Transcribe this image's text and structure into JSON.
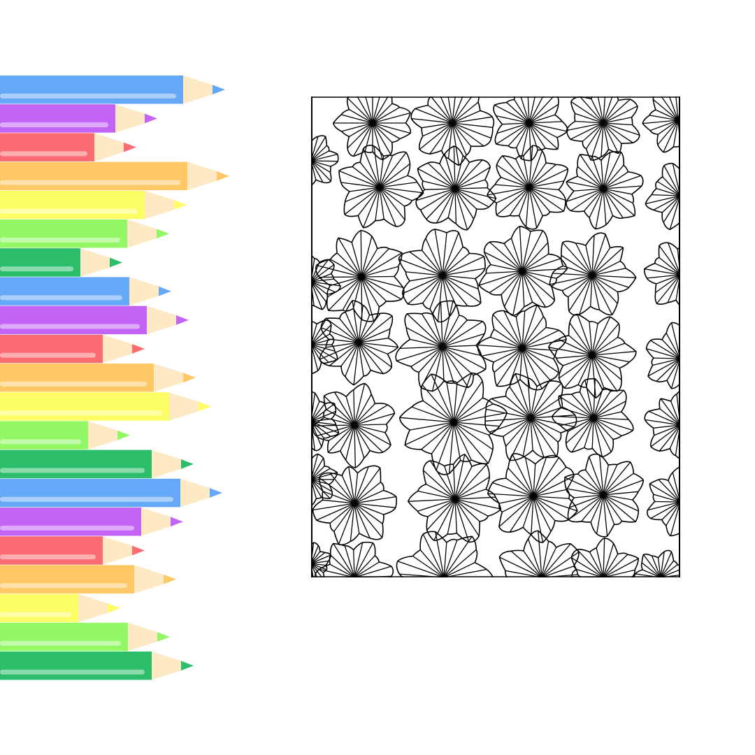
{
  "colors": {
    "background": "#ffffff",
    "wood": "#fde9c4",
    "line_art": "#000000",
    "highlight": "#ffffff"
  },
  "pencils": [
    {
      "color": "#64a8f7",
      "tip": "#64a8f7",
      "name": "blue"
    },
    {
      "color": "#c464f7",
      "tip": "#c464f7",
      "name": "purple"
    },
    {
      "color": "#fb6c72",
      "tip": "#fb6c72",
      "name": "red"
    },
    {
      "color": "#fec866",
      "tip": "#fec866",
      "name": "orange"
    },
    {
      "color": "#fdfd66",
      "tip": "#fdfd66",
      "name": "yellow"
    },
    {
      "color": "#93f865",
      "tip": "#93f865",
      "name": "light-green"
    },
    {
      "color": "#2dbe6c",
      "tip": "#2dbe6c",
      "name": "green"
    },
    {
      "color": "#64a8f7",
      "tip": "#64a8f7",
      "name": "blue"
    },
    {
      "color": "#c464f7",
      "tip": "#c464f7",
      "name": "purple"
    },
    {
      "color": "#fb6c72",
      "tip": "#fb6c72",
      "name": "red"
    },
    {
      "color": "#fec866",
      "tip": "#fec866",
      "name": "orange"
    },
    {
      "color": "#fdfd66",
      "tip": "#fdfd66",
      "name": "yellow"
    },
    {
      "color": "#93f865",
      "tip": "#93f865",
      "name": "light-green"
    },
    {
      "color": "#2dbe6c",
      "tip": "#2dbe6c",
      "name": "green"
    },
    {
      "color": "#64a8f7",
      "tip": "#64a8f7",
      "name": "blue"
    },
    {
      "color": "#c464f7",
      "tip": "#c464f7",
      "name": "purple"
    },
    {
      "color": "#fb6c72",
      "tip": "#fb6c72",
      "name": "red"
    },
    {
      "color": "#fec866",
      "tip": "#fec866",
      "name": "orange"
    },
    {
      "color": "#fdfd66",
      "tip": "#fdfd66",
      "name": "yellow"
    },
    {
      "color": "#93f865",
      "tip": "#93f865",
      "name": "light-green"
    },
    {
      "color": "#2dbe6c",
      "tip": "#2dbe6c",
      "name": "green"
    }
  ]
}
